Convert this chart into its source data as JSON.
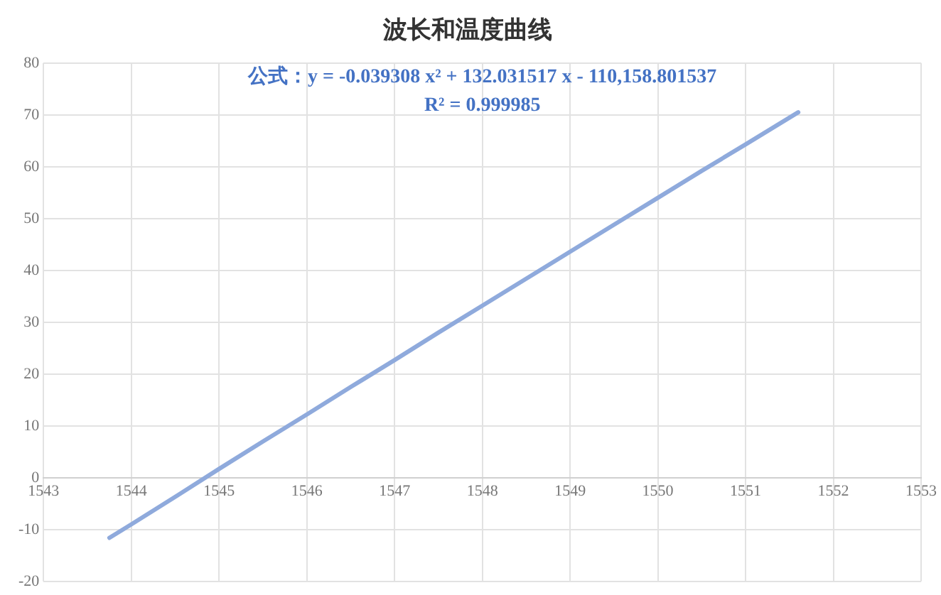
{
  "chart_data": {
    "type": "line",
    "title": "波长和温度曲线",
    "x": [
      1543.75,
      1544,
      1544.5,
      1545,
      1545.5,
      1546,
      1546.5,
      1547,
      1547.5,
      1548,
      1548.5,
      1549,
      1549.5,
      1550,
      1550.5,
      1551,
      1551.6
    ],
    "series": [
      {
        "color": "#8faadc",
        "values": [
          -11.6,
          -9,
          -3.7,
          1.7,
          7,
          12.2,
          17.5,
          22.7,
          28,
          33.2,
          38.4,
          43.6,
          48.8,
          54,
          59.2,
          64.3,
          70.5
        ]
      }
    ],
    "xlim": [
      1543,
      1553
    ],
    "xticks": [
      1543,
      1544,
      1545,
      1546,
      1547,
      1548,
      1549,
      1550,
      1551,
      1552,
      1553
    ],
    "ylim": [
      -20,
      80
    ],
    "yticks": [
      -20,
      -10,
      0,
      10,
      20,
      30,
      40,
      50,
      60,
      70,
      80
    ],
    "grid": true,
    "legend": false,
    "marker": "none",
    "line_style": "solid",
    "annotations": [
      "公式：y = -0.039308 x² + 132.031517 x - 110,158.801537",
      "R² = 0.999985"
    ]
  }
}
